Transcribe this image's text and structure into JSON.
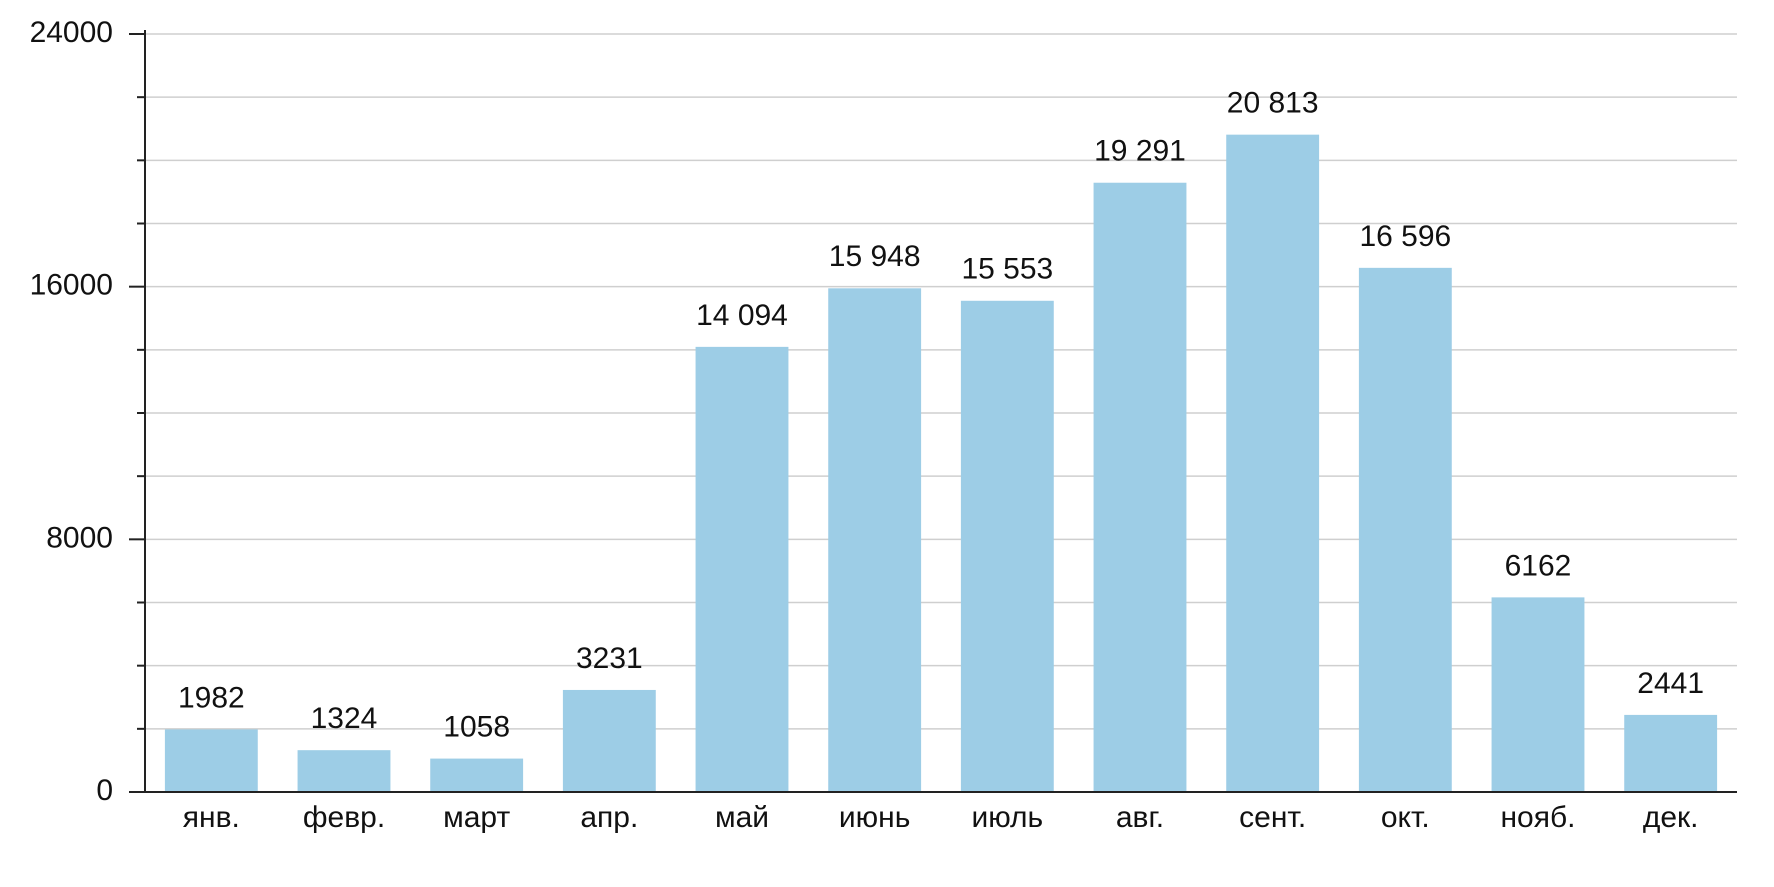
{
  "chart_data": {
    "type": "bar",
    "categories": [
      "янв.",
      "февр.",
      "март",
      "апр.",
      "май",
      "июнь",
      "июль",
      "авг.",
      "сент.",
      "окт.",
      "нояб.",
      "дек."
    ],
    "values": [
      1982,
      1324,
      1058,
      3231,
      14094,
      15948,
      15553,
      19291,
      20813,
      16596,
      6162,
      2441
    ],
    "value_labels": [
      "1982",
      "1324",
      "1058",
      "3231",
      "14 094",
      "15 948",
      "15 553",
      "19 291",
      "20 813",
      "16 596",
      "6162",
      "2441"
    ],
    "color": "#9dcde6",
    "ylim": [
      0,
      24000
    ],
    "yticks": [
      0,
      8000,
      16000,
      24000
    ],
    "minor_yticks": [
      2000,
      4000,
      6000,
      10000,
      12000,
      14000,
      18000,
      20000,
      22000
    ],
    "grid": true
  }
}
